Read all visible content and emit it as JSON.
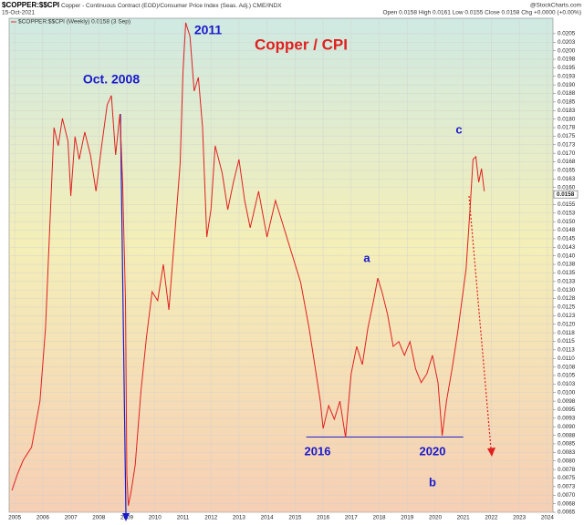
{
  "chart_data": {
    "type": "line",
    "symbol": "$COPPER:$$CPI",
    "description": "Copper - Continuous Contract (EOD)/Consumer Price Index (Seas. Adj.) CME/INDX",
    "date": "15-Oct-2021",
    "quote": "Open 0.0158 High 0.0161 Low 0.0155 Close 0.0158 Chg +0.0000 (+0.00%)",
    "source": "@StockCharts.com",
    "legend": "$COPPER:$$CPI (Weekly) 0.0158 (3 Sep)",
    "last_value": 0.0158,
    "support_level": 0.0087,
    "annotations": [
      "Copper / CPI",
      "2011",
      "Oct. 2008",
      "a",
      "c",
      "2016",
      "2020",
      "b"
    ],
    "series": [
      {
        "name": "$COPPER:$$CPI",
        "color": "#e02020",
        "x": [
          2004.9,
          2005.1,
          2005.3,
          2005.6,
          2005.9,
          2006.1,
          2006.25,
          2006.4,
          2006.55,
          2006.7,
          2006.9,
          2007.0,
          2007.15,
          2007.3,
          2007.5,
          2007.7,
          2007.9,
          2008.1,
          2008.3,
          2008.45,
          2008.6,
          2008.75,
          2008.85,
          2008.95,
          2009.0,
          2009.05,
          2009.15,
          2009.3,
          2009.5,
          2009.7,
          2009.9,
          2010.1,
          2010.3,
          2010.5,
          2010.7,
          2010.9,
          2011.0,
          2011.1,
          2011.25,
          2011.4,
          2011.55,
          2011.7,
          2011.85,
          2012.0,
          2012.15,
          2012.4,
          2012.6,
          2012.8,
          2013.0,
          2013.2,
          2013.4,
          2013.7,
          2014.0,
          2014.3,
          2014.6,
          2014.9,
          2015.2,
          2015.5,
          2015.7,
          2015.9,
          2016.0,
          2016.2,
          2016.4,
          2016.6,
          2016.8,
          2017.0,
          2017.2,
          2017.4,
          2017.6,
          2017.8,
          2017.95,
          2018.1,
          2018.3,
          2018.5,
          2018.7,
          2018.9,
          2019.1,
          2019.3,
          2019.5,
          2019.7,
          2019.9,
          2020.1,
          2020.25,
          2020.4,
          2020.6,
          2020.8,
          2020.95,
          2021.1,
          2021.25,
          2021.35,
          2021.45,
          2021.55,
          2021.65,
          2021.75
        ],
        "values": [
          0.00714,
          0.00762,
          0.00802,
          0.0084,
          0.00975,
          0.01189,
          0.01482,
          0.01775,
          0.01722,
          0.01802,
          0.01735,
          0.01575,
          0.01749,
          0.01682,
          0.01762,
          0.01695,
          0.01589,
          0.01722,
          0.01842,
          0.01869,
          0.01695,
          0.01815,
          0.01615,
          0.01269,
          0.00762,
          0.00669,
          0.00709,
          0.00789,
          0.01002,
          0.01162,
          0.01295,
          0.01269,
          0.01375,
          0.01242,
          0.01455,
          0.01669,
          0.01935,
          0.02082,
          0.02042,
          0.01882,
          0.01922,
          0.01775,
          0.01455,
          0.01535,
          0.01722,
          0.01642,
          0.01535,
          0.01615,
          0.01682,
          0.01562,
          0.01482,
          0.01589,
          0.01455,
          0.01562,
          0.01482,
          0.01402,
          0.01322,
          0.01189,
          0.01082,
          0.00975,
          0.00895,
          0.00962,
          0.00922,
          0.00975,
          0.00869,
          0.01055,
          0.01135,
          0.01082,
          0.01189,
          0.01269,
          0.01335,
          0.01295,
          0.01229,
          0.01135,
          0.01149,
          0.01109,
          0.01149,
          0.01069,
          0.01029,
          0.01055,
          0.01109,
          0.01029,
          0.00874,
          0.00975,
          0.01069,
          0.01175,
          0.01269,
          0.01362,
          0.01549,
          0.01682,
          0.0169,
          0.01615,
          0.01655,
          0.01589
        ]
      }
    ],
    "xlim": [
      2004.8,
      2024.2
    ],
    "xticks": [
      2005,
      2006,
      2007,
      2008,
      2009,
      2010,
      2011,
      2012,
      2013,
      2014,
      2015,
      2016,
      2017,
      2018,
      2019,
      2020,
      2021,
      2022,
      2023,
      2024
    ],
    "ylim": [
      0.0065,
      0.02095
    ],
    "yticks": [
      {
        "value": 0.0065,
        "label": "0.0065"
      },
      {
        "value": 0.00675,
        "label": "0.0068"
      },
      {
        "value": 0.007,
        "label": "0.0070"
      },
      {
        "value": 0.00725,
        "label": "0.0073"
      },
      {
        "value": 0.0075,
        "label": "0.0075"
      },
      {
        "value": 0.00775,
        "label": "0.0078"
      },
      {
        "value": 0.008,
        "label": "0.0080"
      },
      {
        "value": 0.00825,
        "label": "0.0083"
      },
      {
        "value": 0.0085,
        "label": "0.0085"
      },
      {
        "value": 0.00875,
        "label": "0.0088"
      },
      {
        "value": 0.009,
        "label": "0.0090"
      },
      {
        "value": 0.00925,
        "label": "0.0093"
      },
      {
        "value": 0.0095,
        "label": "0.0095"
      },
      {
        "value": 0.00975,
        "label": "0.0098"
      },
      {
        "value": 0.01,
        "label": "0.0100"
      },
      {
        "value": 0.01025,
        "label": "0.0103"
      },
      {
        "value": 0.0105,
        "label": "0.0105"
      },
      {
        "value": 0.01075,
        "label": "0.0108"
      },
      {
        "value": 0.011,
        "label": "0.0110"
      },
      {
        "value": 0.01125,
        "label": "0.0113"
      },
      {
        "value": 0.0115,
        "label": "0.0115"
      },
      {
        "value": 0.01175,
        "label": "0.0118"
      },
      {
        "value": 0.012,
        "label": "0.0120"
      },
      {
        "value": 0.01225,
        "label": "0.0123"
      },
      {
        "value": 0.0125,
        "label": "0.0125"
      },
      {
        "value": 0.01275,
        "label": "0.0128"
      },
      {
        "value": 0.013,
        "label": "0.0130"
      },
      {
        "value": 0.01325,
        "label": "0.0133"
      },
      {
        "value": 0.0135,
        "label": "0.0135"
      },
      {
        "value": 0.01375,
        "label": "0.0138"
      },
      {
        "value": 0.014,
        "label": "0.0140"
      },
      {
        "value": 0.01425,
        "label": "0.0143"
      },
      {
        "value": 0.0145,
        "label": "0.0145"
      },
      {
        "value": 0.01475,
        "label": "0.0148"
      },
      {
        "value": 0.015,
        "label": "0.0150"
      },
      {
        "value": 0.01525,
        "label": "0.0153"
      },
      {
        "value": 0.0155,
        "label": "0.0155"
      },
      {
        "value": 0.016,
        "label": "0.0160"
      },
      {
        "value": 0.01625,
        "label": "0.0163"
      },
      {
        "value": 0.0165,
        "label": "0.0165"
      },
      {
        "value": 0.01675,
        "label": "0.0168"
      },
      {
        "value": 0.017,
        "label": "0.0170"
      },
      {
        "value": 0.01725,
        "label": "0.0173"
      },
      {
        "value": 0.0175,
        "label": "0.0175"
      },
      {
        "value": 0.01775,
        "label": "0.0178"
      },
      {
        "value": 0.018,
        "label": "0.0180"
      },
      {
        "value": 0.01825,
        "label": "0.0183"
      },
      {
        "value": 0.0185,
        "label": "0.0185"
      },
      {
        "value": 0.01875,
        "label": "0.0188"
      },
      {
        "value": 0.019,
        "label": "0.0190"
      },
      {
        "value": 0.01925,
        "label": "0.0193"
      },
      {
        "value": 0.0195,
        "label": "0.0195"
      },
      {
        "value": 0.01975,
        "label": "0.0198"
      },
      {
        "value": 0.02,
        "label": "0.0200"
      },
      {
        "value": 0.02025,
        "label": "0.0203"
      },
      {
        "value": 0.0205,
        "label": "0.0205"
      }
    ],
    "grid": true
  }
}
